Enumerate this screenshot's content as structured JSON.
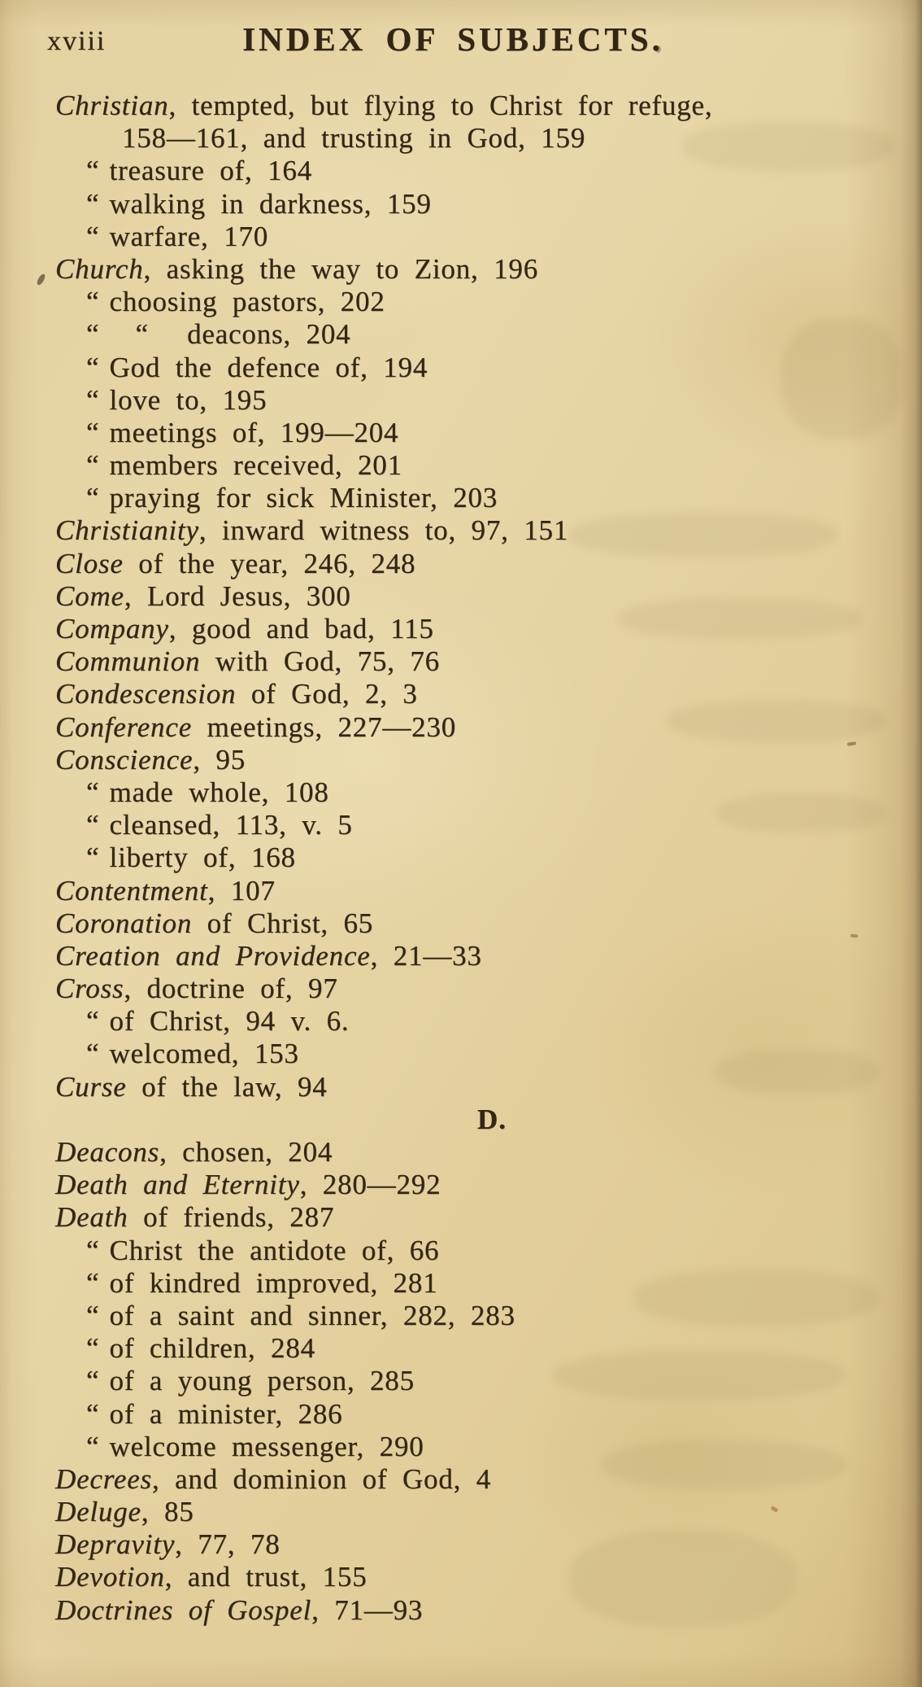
{
  "page": {
    "page_number": "xviii",
    "title": "INDEX OF SUBJECTS.",
    "ditto_mark": "“"
  },
  "entries": [
    {
      "type": "entry",
      "indent": 0,
      "quotes": 0,
      "head": "Christian",
      "text": ", tempted, but flying to Christ for refuge,"
    },
    {
      "type": "entry",
      "indent": 2,
      "quotes": 0,
      "head": "",
      "text": "158—161, and trusting in God, 159"
    },
    {
      "type": "entry",
      "indent": 1,
      "quotes": 1,
      "head": "",
      "text": "treasure of, 164"
    },
    {
      "type": "entry",
      "indent": 1,
      "quotes": 1,
      "head": "",
      "text": "walking in darkness, 159"
    },
    {
      "type": "entry",
      "indent": 1,
      "quotes": 1,
      "head": "",
      "text": "warfare, 170"
    },
    {
      "type": "entry",
      "indent": 0,
      "quotes": 0,
      "head": "Church",
      "text": ", asking the way to Zion, 196"
    },
    {
      "type": "entry",
      "indent": 1,
      "quotes": 1,
      "head": "",
      "text": "choosing pastors, 202"
    },
    {
      "type": "entry",
      "indent": 1,
      "quotes": 2,
      "head": "",
      "text": "deacons, 204"
    },
    {
      "type": "entry",
      "indent": 1,
      "quotes": 1,
      "head": "",
      "text": "God the defence of, 194"
    },
    {
      "type": "entry",
      "indent": 1,
      "quotes": 1,
      "head": "",
      "text": "love to, 195"
    },
    {
      "type": "entry",
      "indent": 1,
      "quotes": 1,
      "head": "",
      "text": "meetings of, 199—204"
    },
    {
      "type": "entry",
      "indent": 1,
      "quotes": 1,
      "head": "",
      "text": "members received, 201"
    },
    {
      "type": "entry",
      "indent": 1,
      "quotes": 1,
      "head": "",
      "text": "praying for sick Minister, 203"
    },
    {
      "type": "entry",
      "indent": 0,
      "quotes": 0,
      "head": "Christianity",
      "text": ", inward witness to, 97, 151"
    },
    {
      "type": "entry",
      "indent": 0,
      "quotes": 0,
      "head": "Close",
      "text": " of the year, 246, 248"
    },
    {
      "type": "entry",
      "indent": 0,
      "quotes": 0,
      "head": "Come",
      "text": ", Lord Jesus, 300"
    },
    {
      "type": "entry",
      "indent": 0,
      "quotes": 0,
      "head": "Company",
      "text": ", good and bad, 115"
    },
    {
      "type": "entry",
      "indent": 0,
      "quotes": 0,
      "head": "Communion",
      "text": " with God, 75, 76"
    },
    {
      "type": "entry",
      "indent": 0,
      "quotes": 0,
      "head": "Condescension",
      "text": " of God, 2, 3"
    },
    {
      "type": "entry",
      "indent": 0,
      "quotes": 0,
      "head": "Conference",
      "text": " meetings, 227—230"
    },
    {
      "type": "entry",
      "indent": 0,
      "quotes": 0,
      "head": "Conscience",
      "text": ", 95"
    },
    {
      "type": "entry",
      "indent": 1,
      "quotes": 1,
      "head": "",
      "text": "made whole, 108"
    },
    {
      "type": "entry",
      "indent": 1,
      "quotes": 1,
      "head": "",
      "text": "cleansed, 113, v. 5"
    },
    {
      "type": "entry",
      "indent": 1,
      "quotes": 1,
      "head": "",
      "text": "liberty of, 168"
    },
    {
      "type": "entry",
      "indent": 0,
      "quotes": 0,
      "head": "Contentment",
      "text": ", 107"
    },
    {
      "type": "entry",
      "indent": 0,
      "quotes": 0,
      "head": "Coronation",
      "text": " of Christ, 65"
    },
    {
      "type": "entry",
      "indent": 0,
      "quotes": 0,
      "head": "Creation and Providence",
      "text": ", 21—33"
    },
    {
      "type": "entry",
      "indent": 0,
      "quotes": 0,
      "head": "Cross",
      "text": ", doctrine of, 97"
    },
    {
      "type": "entry",
      "indent": 1,
      "quotes": 1,
      "head": "",
      "text": "of Christ, 94 v. 6."
    },
    {
      "type": "entry",
      "indent": 1,
      "quotes": 1,
      "head": "",
      "text": "welcomed, 153"
    },
    {
      "type": "entry",
      "indent": 0,
      "quotes": 0,
      "head": "Curse",
      "text": " of the law, 94"
    },
    {
      "type": "section",
      "indent": 0,
      "quotes": 0,
      "head": "",
      "text": "D."
    },
    {
      "type": "entry",
      "indent": 0,
      "quotes": 0,
      "head": "Deacons",
      "text": ", chosen, 204"
    },
    {
      "type": "entry",
      "indent": 0,
      "quotes": 0,
      "head": "Death and Eternity",
      "text": ", 280—292"
    },
    {
      "type": "entry",
      "indent": 0,
      "quotes": 0,
      "head": "Death",
      "text": " of friends, 287"
    },
    {
      "type": "entry",
      "indent": 1,
      "quotes": 1,
      "head": "",
      "text": "Christ the antidote of, 66"
    },
    {
      "type": "entry",
      "indent": 1,
      "quotes": 1,
      "head": "",
      "text": "of kindred improved, 281"
    },
    {
      "type": "entry",
      "indent": 1,
      "quotes": 1,
      "head": "",
      "text": "of a saint and sinner, 282, 283"
    },
    {
      "type": "entry",
      "indent": 1,
      "quotes": 1,
      "head": "",
      "text": "of children, 284"
    },
    {
      "type": "entry",
      "indent": 1,
      "quotes": 1,
      "head": "",
      "text": "of a young person, 285"
    },
    {
      "type": "entry",
      "indent": 1,
      "quotes": 1,
      "head": "",
      "text": "of a minister, 286"
    },
    {
      "type": "entry",
      "indent": 1,
      "quotes": 1,
      "head": "",
      "text": "welcome messenger, 290"
    },
    {
      "type": "entry",
      "indent": 0,
      "quotes": 0,
      "head": "Decrees",
      "text": ", and dominion of God, 4"
    },
    {
      "type": "entry",
      "indent": 0,
      "quotes": 0,
      "head": "Deluge",
      "text": ", 85"
    },
    {
      "type": "entry",
      "indent": 0,
      "quotes": 0,
      "head": "Depravity",
      "text": ", 77, 78"
    },
    {
      "type": "entry",
      "indent": 0,
      "quotes": 0,
      "head": "Devotion",
      "text": ", and trust, 155"
    },
    {
      "type": "entry",
      "indent": 0,
      "quotes": 0,
      "head": "Doctrines of Gospel",
      "text": ", 71—93"
    }
  ]
}
